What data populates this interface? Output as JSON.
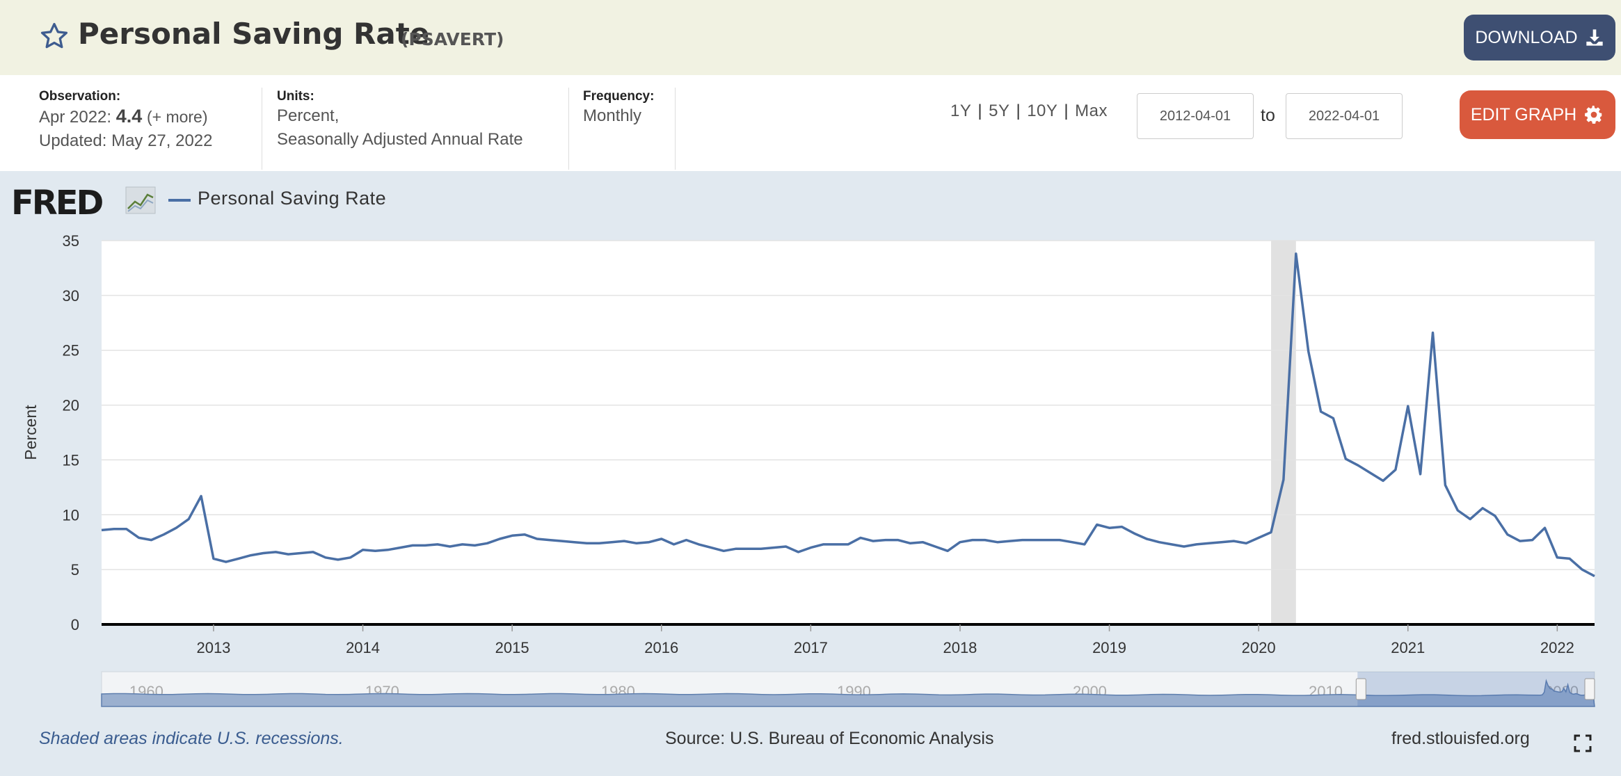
{
  "header": {
    "title": "Personal Saving Rate",
    "series_id": "(PSAVERT)",
    "download_label": "DOWNLOAD",
    "star_icon": "star-icon",
    "download_icon": "download-icon"
  },
  "meta": {
    "observation_label": "Observation:",
    "observation_date": "Apr 2022:",
    "observation_value": "4.4",
    "observation_more": "(+ more)",
    "updated": "Updated: May 27, 2022",
    "units_label": "Units:",
    "units_line1": "Percent,",
    "units_line2": "Seasonally Adjusted Annual Rate",
    "frequency_label": "Frequency:",
    "frequency_value": "Monthly"
  },
  "range": {
    "options": [
      "1Y",
      "5Y",
      "10Y",
      "Max"
    ],
    "start_date": "2012-04-01",
    "to_label": "to",
    "end_date": "2022-04-01",
    "edit_label": "EDIT GRAPH"
  },
  "legend": {
    "logo_text": "FRED",
    "series_name": "Personal Saving Rate"
  },
  "footer": {
    "note": "Shaded areas indicate U.S. recessions.",
    "source": "Source: U.S. Bureau of Economic Analysis",
    "url": "fred.stlouisfed.org"
  },
  "colors": {
    "line": "#4a6fa5",
    "recession": "#e1e1e1",
    "header_bg": "#f1f2e2",
    "download_bg": "#3e4f72",
    "edit_bg": "#d9593d"
  },
  "chart_data": {
    "type": "line",
    "ylabel": "Percent",
    "ylim": [
      0,
      35
    ],
    "yticks": [
      0,
      5,
      10,
      15,
      20,
      25,
      30,
      35
    ],
    "xlim": [
      "2012-04-01",
      "2022-04-01"
    ],
    "xticks": [
      "2013",
      "2014",
      "2015",
      "2016",
      "2017",
      "2018",
      "2019",
      "2020",
      "2021",
      "2022"
    ],
    "grid": true,
    "recession_bands": [
      [
        "2020-02-01",
        "2020-04-01"
      ]
    ],
    "navigator_labels": [
      "1960",
      "1970",
      "1980",
      "1990",
      "2000",
      "2010",
      "2020"
    ],
    "series": [
      {
        "name": "Personal Saving Rate",
        "x": [
          "2012-04",
          "2012-05",
          "2012-06",
          "2012-07",
          "2012-08",
          "2012-09",
          "2012-10",
          "2012-11",
          "2012-12",
          "2013-01",
          "2013-02",
          "2013-03",
          "2013-04",
          "2013-05",
          "2013-06",
          "2013-07",
          "2013-08",
          "2013-09",
          "2013-10",
          "2013-11",
          "2013-12",
          "2014-01",
          "2014-02",
          "2014-03",
          "2014-04",
          "2014-05",
          "2014-06",
          "2014-07",
          "2014-08",
          "2014-09",
          "2014-10",
          "2014-11",
          "2014-12",
          "2015-01",
          "2015-02",
          "2015-03",
          "2015-04",
          "2015-05",
          "2015-06",
          "2015-07",
          "2015-08",
          "2015-09",
          "2015-10",
          "2015-11",
          "2015-12",
          "2016-01",
          "2016-02",
          "2016-03",
          "2016-04",
          "2016-05",
          "2016-06",
          "2016-07",
          "2016-08",
          "2016-09",
          "2016-10",
          "2016-11",
          "2016-12",
          "2017-01",
          "2017-02",
          "2017-03",
          "2017-04",
          "2017-05",
          "2017-06",
          "2017-07",
          "2017-08",
          "2017-09",
          "2017-10",
          "2017-11",
          "2017-12",
          "2018-01",
          "2018-02",
          "2018-03",
          "2018-04",
          "2018-05",
          "2018-06",
          "2018-07",
          "2018-08",
          "2018-09",
          "2018-10",
          "2018-11",
          "2018-12",
          "2019-01",
          "2019-02",
          "2019-03",
          "2019-04",
          "2019-05",
          "2019-06",
          "2019-07",
          "2019-08",
          "2019-09",
          "2019-10",
          "2019-11",
          "2019-12",
          "2020-01",
          "2020-02",
          "2020-03",
          "2020-04",
          "2020-05",
          "2020-06",
          "2020-07",
          "2020-08",
          "2020-09",
          "2020-10",
          "2020-11",
          "2020-12",
          "2021-01",
          "2021-02",
          "2021-03",
          "2021-04",
          "2021-05",
          "2021-06",
          "2021-07",
          "2021-08",
          "2021-09",
          "2021-10",
          "2021-11",
          "2021-12",
          "2022-01",
          "2022-02",
          "2022-03",
          "2022-04"
        ],
        "values": [
          8.6,
          8.7,
          8.7,
          7.9,
          7.7,
          8.2,
          8.8,
          9.6,
          11.7,
          6.0,
          5.7,
          6.0,
          6.3,
          6.5,
          6.6,
          6.4,
          6.5,
          6.6,
          6.1,
          5.9,
          6.1,
          6.8,
          6.7,
          6.8,
          7.0,
          7.2,
          7.2,
          7.3,
          7.1,
          7.3,
          7.2,
          7.4,
          7.8,
          8.1,
          8.2,
          7.8,
          7.7,
          7.6,
          7.5,
          7.4,
          7.4,
          7.5,
          7.6,
          7.4,
          7.5,
          7.8,
          7.3,
          7.7,
          7.3,
          7.0,
          6.7,
          6.9,
          6.9,
          6.9,
          7.0,
          7.1,
          6.6,
          7.0,
          7.3,
          7.3,
          7.3,
          7.9,
          7.6,
          7.7,
          7.7,
          7.4,
          7.5,
          7.1,
          6.7,
          7.5,
          7.7,
          7.7,
          7.5,
          7.6,
          7.7,
          7.7,
          7.7,
          7.7,
          7.5,
          7.3,
          9.1,
          8.8,
          8.9,
          8.3,
          7.8,
          7.5,
          7.3,
          7.1,
          7.3,
          7.4,
          7.5,
          7.6,
          7.4,
          7.9,
          8.4,
          13.2,
          33.8,
          24.9,
          19.4,
          18.8,
          15.1,
          14.5,
          13.8,
          13.1,
          14.1,
          19.9,
          13.7,
          26.6,
          12.7,
          10.4,
          9.6,
          10.6,
          9.9,
          8.2,
          7.6,
          7.7,
          8.8,
          6.1,
          6.0,
          5.0,
          4.4
        ]
      }
    ]
  }
}
